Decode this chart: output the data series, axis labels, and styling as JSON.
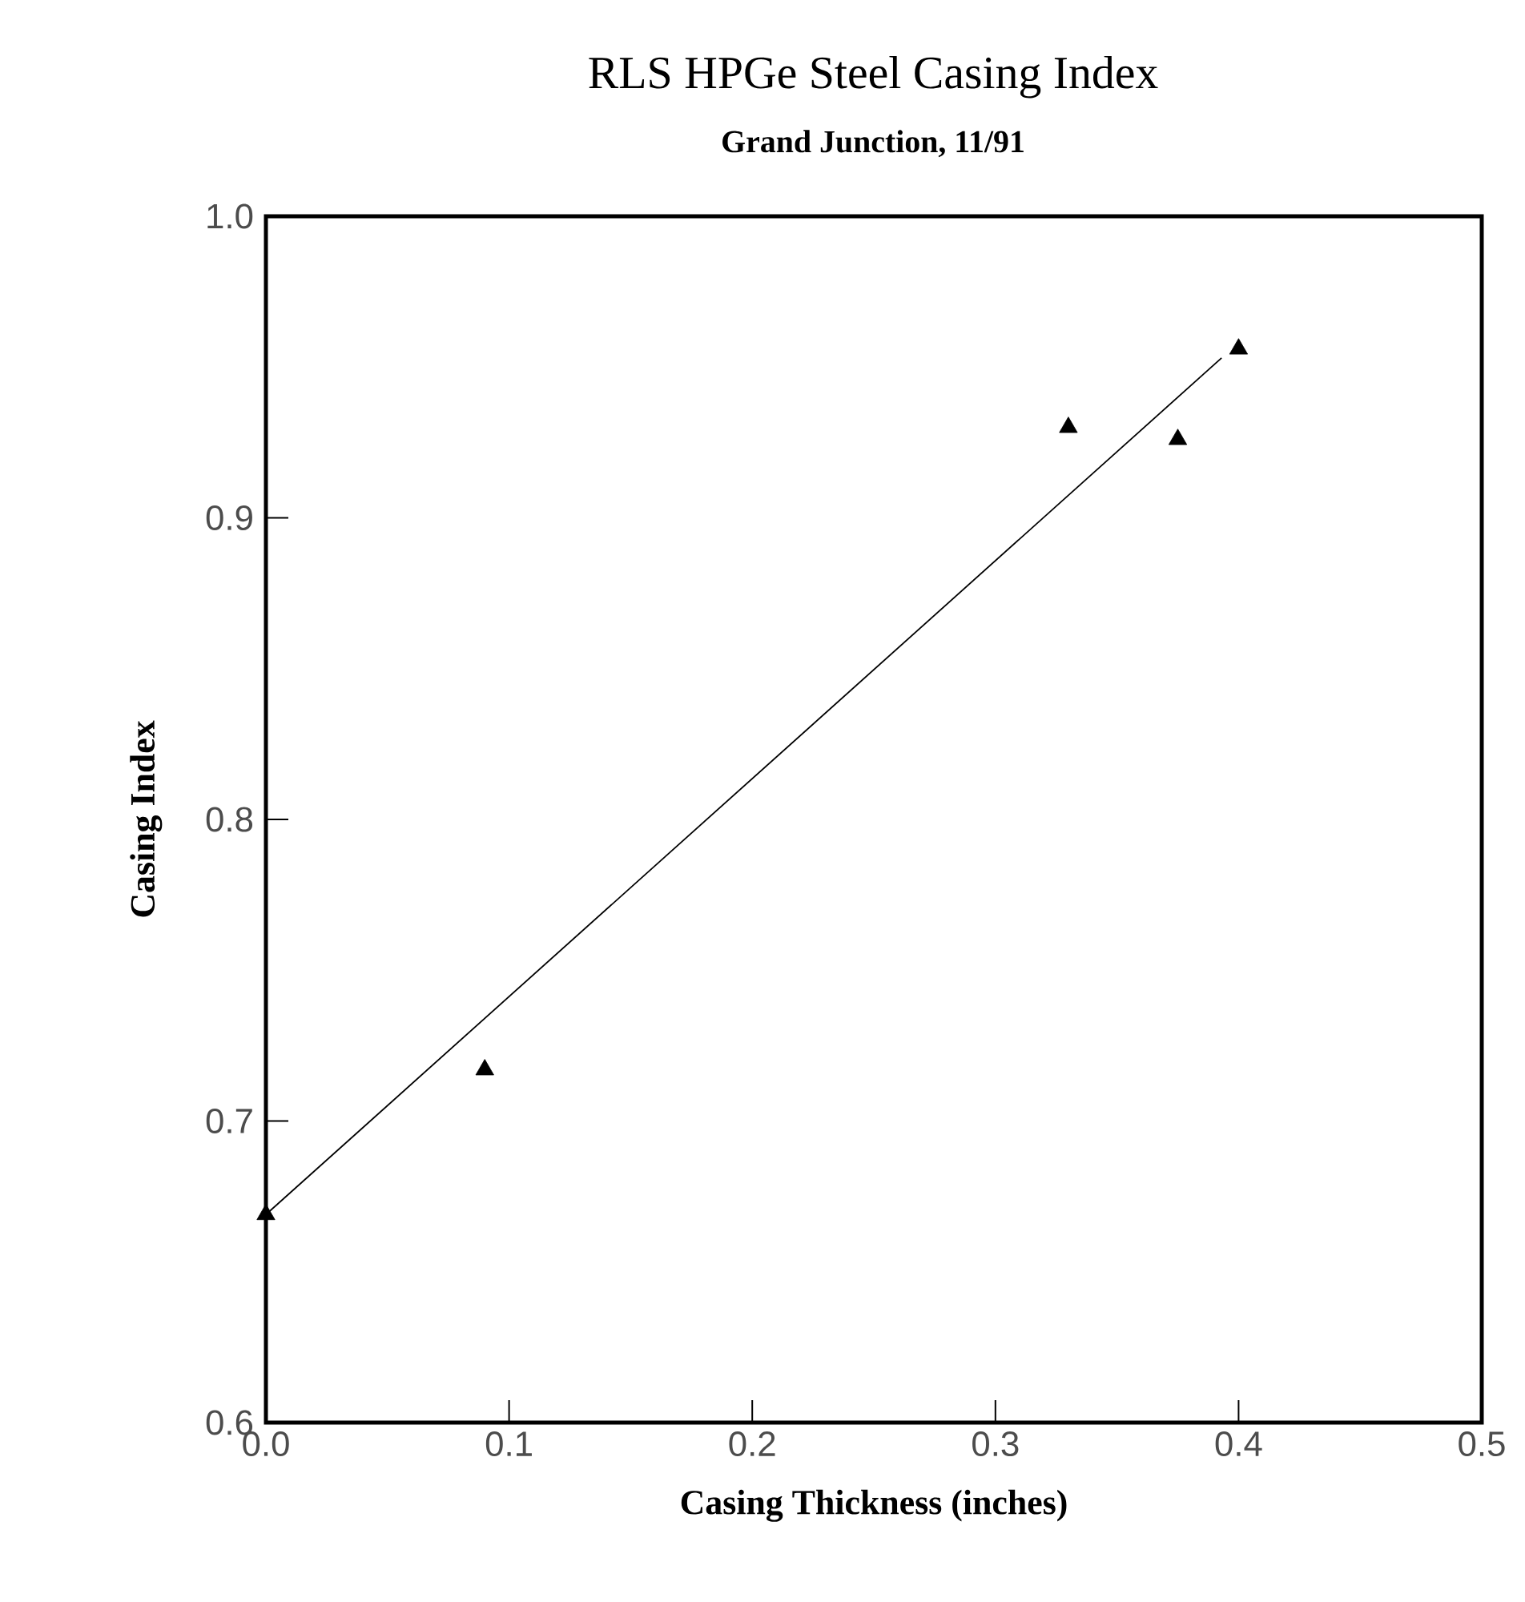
{
  "chart_data": {
    "type": "scatter",
    "title": "RLS HPGe Steel Casing Index",
    "subtitle": "Grand Junction, 11/91",
    "xlabel": "Casing Thickness  (inches)",
    "ylabel": "Casing Index",
    "xlim": [
      0.0,
      0.5
    ],
    "ylim": [
      0.6,
      1.0
    ],
    "xticks": [
      {
        "value": 0.0,
        "label": "0.0"
      },
      0.1,
      0.2,
      0.3,
      0.4,
      0.5
    ],
    "yticks": [
      0.6,
      0.7,
      0.8,
      0.9,
      {
        "value": 1.0,
        "label": "1.0"
      }
    ],
    "marker": "triangle",
    "series": [
      {
        "color": "#000000",
        "x": [
          0.0,
          0.09,
          0.33,
          0.375,
          0.4
        ],
        "values": [
          0.669,
          0.717,
          0.93,
          0.926,
          0.956
        ]
      },
      {
        "type": "line",
        "color": "#000000",
        "marker": "none",
        "x": [
          0.0,
          0.393
        ],
        "values": [
          0.669,
          0.953
        ]
      }
    ]
  }
}
